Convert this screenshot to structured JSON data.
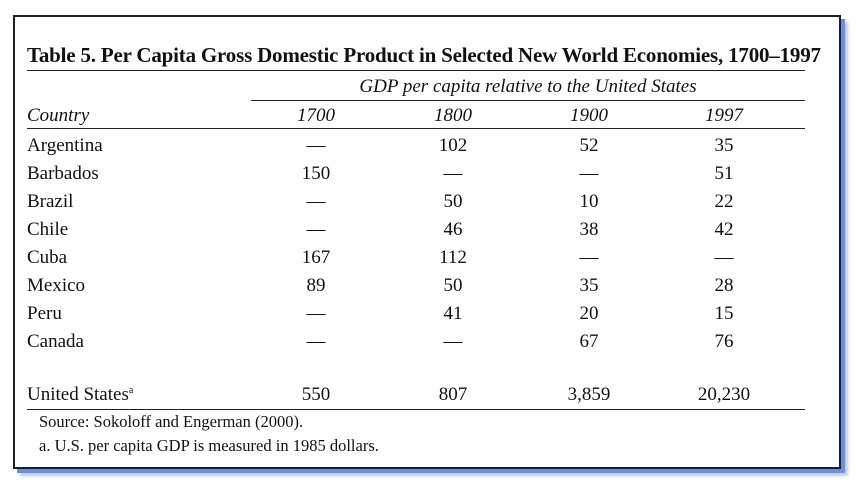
{
  "title": "Table 5. Per Capita Gross Domestic Product in Selected New World Economies, 1700–1997",
  "super_header": "GDP per capita relative to the United States",
  "columns": [
    "Country",
    "1700",
    "1800",
    "1900",
    "1997"
  ],
  "rows": [
    {
      "country": "Argentina",
      "v": [
        "—",
        "102",
        "52",
        "35"
      ]
    },
    {
      "country": "Barbados",
      "v": [
        "150",
        "—",
        "—",
        "51"
      ]
    },
    {
      "country": "Brazil",
      "v": [
        "—",
        "50",
        "10",
        "22"
      ]
    },
    {
      "country": "Chile",
      "v": [
        "—",
        "46",
        "38",
        "42"
      ]
    },
    {
      "country": "Cuba",
      "v": [
        "167",
        "112",
        "—",
        "—"
      ]
    },
    {
      "country": "Mexico",
      "v": [
        "89",
        "50",
        "35",
        "28"
      ]
    },
    {
      "country": "Peru",
      "v": [
        "—",
        "41",
        "20",
        "15"
      ]
    },
    {
      "country": "Canada",
      "v": [
        "—",
        "—",
        "67",
        "76"
      ]
    }
  ],
  "us_row": {
    "country": "United States",
    "footnote_mark": "a",
    "v": [
      "550",
      "807",
      "3,859",
      "20,230"
    ]
  },
  "source": "Source: Sokoloff and Engerman (2000).",
  "footnote": "a. U.S. per capita GDP is measured in 1985 dollars."
}
